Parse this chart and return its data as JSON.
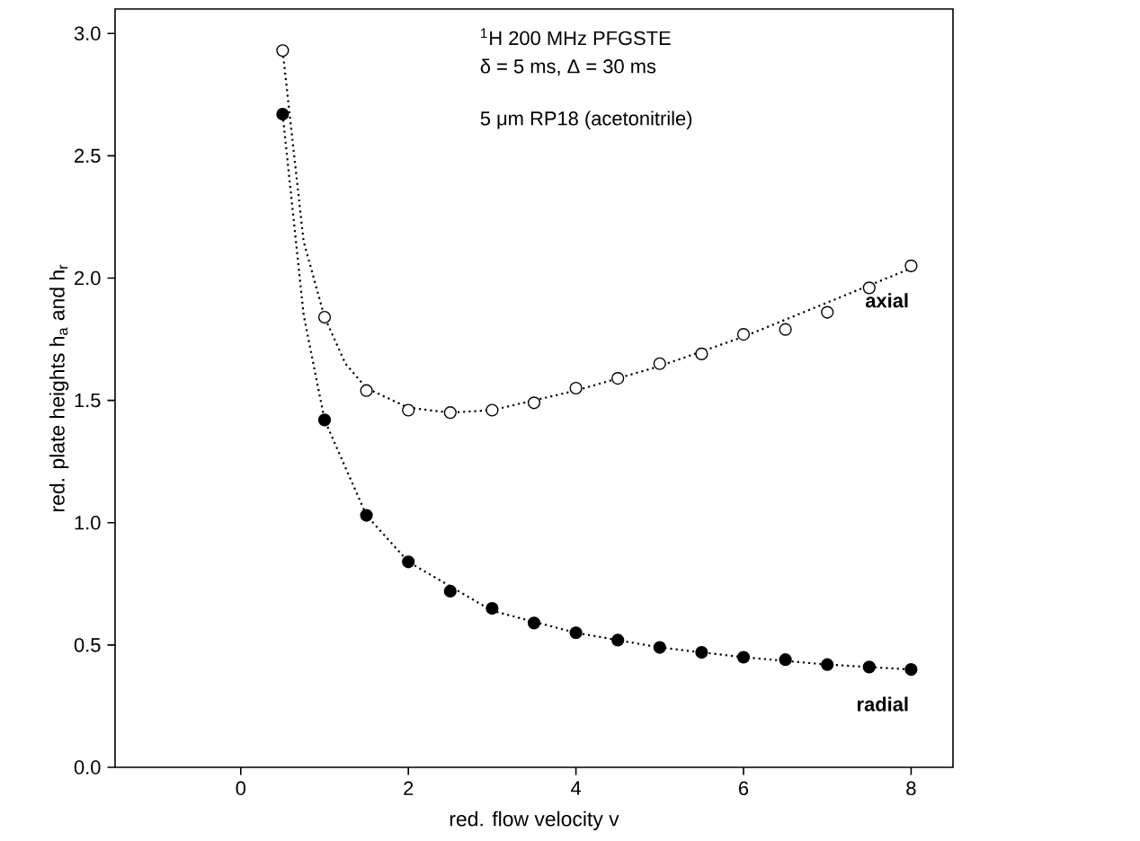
{
  "chart_data": {
    "type": "scatter",
    "xlabel": "red. flow velocity v",
    "ylabel": "red. plate heights h$_{a}$ and h$_{r}$",
    "annotations": [
      "$^{1}$H 200 MHz PFGSTE",
      "δ = 5 ms, Δ = 30 ms",
      "5 μm RP18 (acetonitrile)"
    ],
    "xlim": [
      -1.5,
      8.5
    ],
    "ylim": [
      0,
      3.1
    ],
    "xticks": [
      0,
      2,
      4,
      6,
      8
    ],
    "yticks": [
      {
        "value": 0,
        "label": "0.0"
      },
      {
        "value": 0.5,
        "label": "0.5"
      },
      {
        "value": 1,
        "label": "1.0"
      },
      {
        "value": 1.5,
        "label": "1.5"
      },
      {
        "value": 2,
        "label": "2.0"
      },
      {
        "value": 2.5,
        "label": "2.5"
      },
      {
        "value": 3,
        "label": "3.0"
      }
    ],
    "grid": false,
    "series": [
      {
        "name": "axial",
        "marker": "circle",
        "color": "#ffffff",
        "x": [
          0.5,
          1,
          1.5,
          2,
          2.5,
          3,
          3.5,
          4,
          4.5,
          5,
          5.5,
          6,
          6.5,
          7,
          7.5,
          8
        ],
        "values": [
          2.93,
          1.84,
          1.54,
          1.46,
          1.45,
          1.46,
          1.49,
          1.55,
          1.59,
          1.65,
          1.69,
          1.77,
          1.79,
          1.86,
          1.96,
          2.05
        ]
      },
      {
        "name": "radial",
        "marker": "circle",
        "color": "#000000",
        "x": [
          0.5,
          1,
          1.5,
          2,
          2.5,
          3,
          3.5,
          4,
          4.5,
          5,
          5.5,
          6,
          6.5,
          7,
          7.5,
          8
        ],
        "values": [
          2.67,
          1.42,
          1.03,
          0.84,
          0.72,
          0.65,
          0.59,
          0.55,
          0.52,
          0.49,
          0.47,
          0.45,
          0.44,
          0.42,
          0.41,
          0.4
        ]
      },
      {
        "type": "line",
        "marker": "none",
        "line_style": "dotted",
        "color": "#000000",
        "x": [
          0.5,
          0.75,
          1,
          1.25,
          1.5,
          2,
          2.5,
          3,
          4,
          5,
          6,
          7,
          8
        ],
        "values": [
          2.93,
          2.15,
          1.84,
          1.65,
          1.55,
          1.47,
          1.45,
          1.46,
          1.54,
          1.64,
          1.76,
          1.9,
          2.04
        ]
      },
      {
        "type": "line",
        "marker": "none",
        "line_style": "dotted",
        "color": "#000000",
        "x": [
          0.5,
          0.75,
          1,
          1.5,
          2,
          3,
          4,
          5,
          6,
          7,
          8
        ],
        "values": [
          2.67,
          1.85,
          1.42,
          1.03,
          0.84,
          0.64,
          0.55,
          0.49,
          0.45,
          0.42,
          0.4
        ]
      }
    ]
  }
}
